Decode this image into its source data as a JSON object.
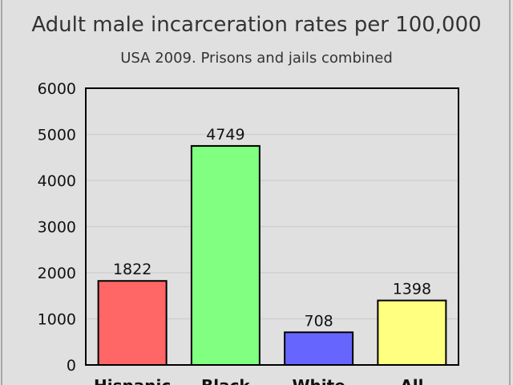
{
  "chart_data": {
    "type": "bar",
    "title": "Adult male incarceration rates per 100,000",
    "subtitle": "USA 2009. Prisons and jails combined",
    "categories": [
      "Hispanic",
      "Black",
      "White",
      "All"
    ],
    "values": [
      1822,
      4749,
      708,
      1398
    ],
    "colors": [
      "#ff6666",
      "#80ff80",
      "#6666ff",
      "#ffff80"
    ],
    "ylim": [
      0,
      6000
    ],
    "yticks": [
      0,
      1000,
      2000,
      3000,
      4000,
      5000,
      6000
    ],
    "grid": true,
    "data_labels": true,
    "background": "#e0e0e0"
  }
}
